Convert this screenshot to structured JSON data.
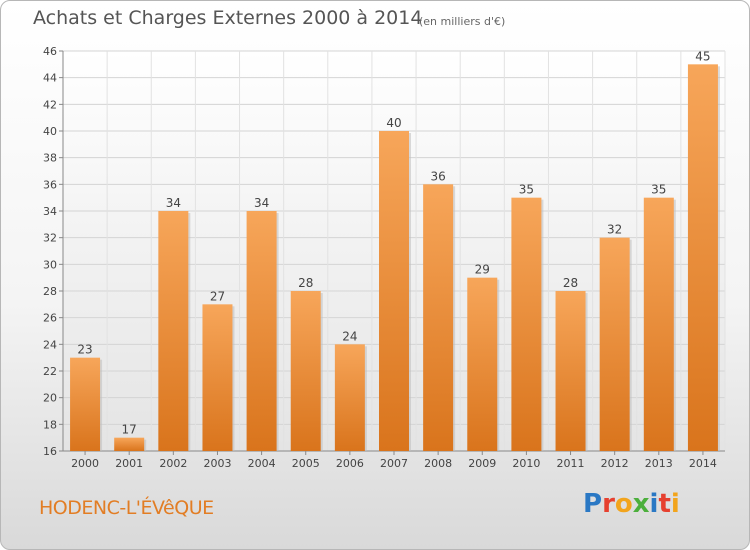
{
  "chart_data": {
    "type": "bar",
    "title": "Achats et Charges Externes 2000 à 2014",
    "subtitle": "(en milliers d'€)",
    "categories": [
      "2000",
      "2001",
      "2002",
      "2003",
      "2004",
      "2005",
      "2006",
      "2007",
      "2008",
      "2009",
      "2010",
      "2011",
      "2012",
      "2013",
      "2014"
    ],
    "values": [
      23,
      17,
      34,
      27,
      34,
      28,
      24,
      40,
      36,
      29,
      35,
      28,
      32,
      35,
      45
    ],
    "ylim": [
      16,
      46
    ],
    "yticks": [
      16,
      18,
      20,
      22,
      24,
      26,
      28,
      30,
      32,
      34,
      36,
      38,
      40,
      42,
      44,
      46
    ],
    "xlabel": "",
    "ylabel": "",
    "grid": true,
    "bar_color_light": "#f7a65a",
    "bar_color_dark": "#d9741c"
  },
  "location": "HODENC-L'ÉVêQUE",
  "logo": {
    "letters": [
      "P",
      "r",
      "o",
      "x",
      "i",
      "t",
      "i"
    ],
    "colors": [
      "#2a78c4",
      "#e6402f",
      "#f2a41c",
      "#4caf3c",
      "#2a78c4",
      "#e6402f",
      "#f2a41c"
    ]
  }
}
